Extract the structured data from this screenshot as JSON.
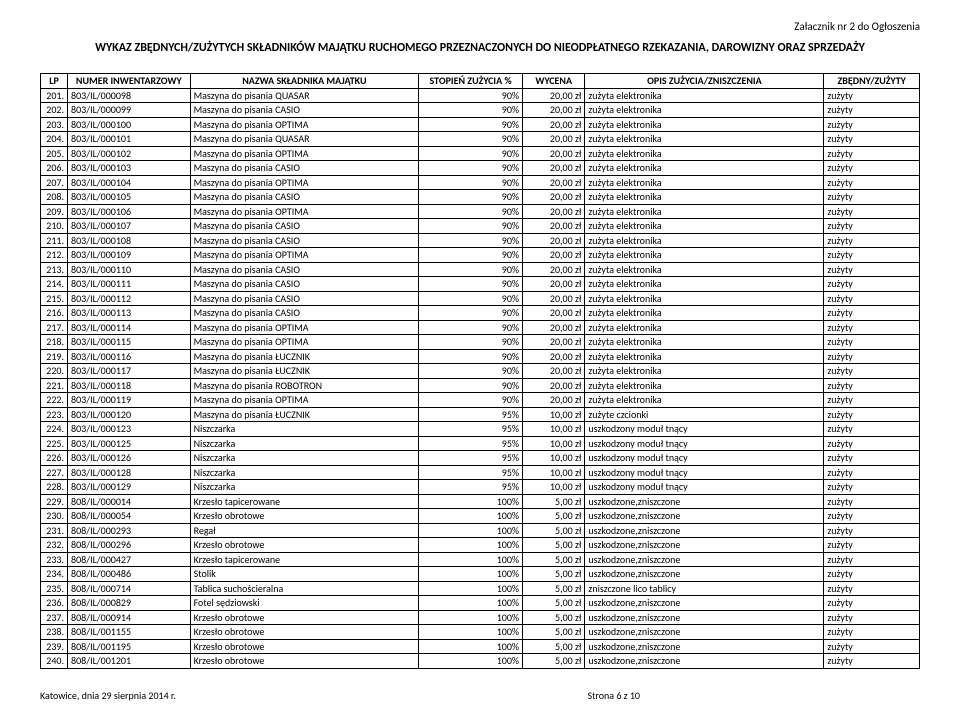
{
  "attachment_label": "Załacznik nr 2 do Ogłoszenia",
  "title": "WYKAZ ZBĘDNYCH/ZUŻYTYCH SKŁADNIKÓW MAJĄTKU RUCHOMEGO PRZEZNACZONYCH DO NIEODPŁATNEGO RZEKAZANIA, DAROWIZNY ORAZ SPRZEDAŻY",
  "columns": {
    "lp": "LP",
    "inv": "NUMER INWENTARZOWY",
    "name": "NAZWA SKŁADNIKA MAJĄTKU",
    "wear": "STOPIEŃ ZUŻYCIA %",
    "val": "WYCENA",
    "desc": "OPIS ZUŻYCIA/ZNISZCZENIA",
    "status": "ZBĘDNY/ZUŻYTY"
  },
  "rows": [
    {
      "lp": "201.",
      "inv": "803/IL/000098",
      "name": "Maszyna do pisania QUASAR",
      "wear": "90%",
      "val": "20,00 zł",
      "desc": "zużyta elektronika",
      "status": "zużyty"
    },
    {
      "lp": "202.",
      "inv": "803/IL/000099",
      "name": "Maszyna do pisania CASIO",
      "wear": "90%",
      "val": "20,00 zł",
      "desc": "zużyta elektronika",
      "status": "zużyty"
    },
    {
      "lp": "203.",
      "inv": "803/IL/000100",
      "name": "Maszyna do pisania OPTIMA",
      "wear": "90%",
      "val": "20,00 zł",
      "desc": "zużyta elektronika",
      "status": "zużyty"
    },
    {
      "lp": "204.",
      "inv": "803/IL/000101",
      "name": "Maszyna do pisania QUASAR",
      "wear": "90%",
      "val": "20,00 zł",
      "desc": "zużyta elektronika",
      "status": "zużyty"
    },
    {
      "lp": "205.",
      "inv": "803/IL/000102",
      "name": "Maszyna do pisania OPTIMA",
      "wear": "90%",
      "val": "20,00 zł",
      "desc": "zużyta elektronika",
      "status": "zużyty"
    },
    {
      "lp": "206.",
      "inv": "803/IL/000103",
      "name": "Maszyna do pisania CASIO",
      "wear": "90%",
      "val": "20,00 zł",
      "desc": "zużyta elektronika",
      "status": "zużyty"
    },
    {
      "lp": "207.",
      "inv": "803/IL/000104",
      "name": "Maszyna do pisania OPTIMA",
      "wear": "90%",
      "val": "20,00 zł",
      "desc": "zużyta elektronika",
      "status": "zużyty"
    },
    {
      "lp": "208.",
      "inv": "803/IL/000105",
      "name": "Maszyna do pisania CASIO",
      "wear": "90%",
      "val": "20,00 zł",
      "desc": "zużyta elektronika",
      "status": "zużyty"
    },
    {
      "lp": "209.",
      "inv": "803/IL/000106",
      "name": "Maszyna do pisania OPTIMA",
      "wear": "90%",
      "val": "20,00 zł",
      "desc": "zużyta elektronika",
      "status": "zużyty"
    },
    {
      "lp": "210.",
      "inv": "803/IL/000107",
      "name": "Maszyna do pisania CASIO",
      "wear": "90%",
      "val": "20,00 zł",
      "desc": "zużyta elektronika",
      "status": "zużyty"
    },
    {
      "lp": "211.",
      "inv": "803/IL/000108",
      "name": "Maszyna do pisania CASIO",
      "wear": "90%",
      "val": "20,00 zł",
      "desc": "zużyta elektronika",
      "status": "zużyty"
    },
    {
      "lp": "212.",
      "inv": "803/IL/000109",
      "name": "Maszyna do pisania OPTIMA",
      "wear": "90%",
      "val": "20,00 zł",
      "desc": "zużyta elektronika",
      "status": "zużyty"
    },
    {
      "lp": "213.",
      "inv": "803/IL/000110",
      "name": "Maszyna do pisania CASIO",
      "wear": "90%",
      "val": "20,00 zł",
      "desc": "zużyta elektronika",
      "status": "zużyty"
    },
    {
      "lp": "214.",
      "inv": "803/IL/000111",
      "name": "Maszyna do pisania CASIO",
      "wear": "90%",
      "val": "20,00 zł",
      "desc": "zużyta elektronika",
      "status": "zużyty"
    },
    {
      "lp": "215.",
      "inv": "803/IL/000112",
      "name": "Maszyna do pisania CASIO",
      "wear": "90%",
      "val": "20,00 zł",
      "desc": "zużyta elektronika",
      "status": "zużyty"
    },
    {
      "lp": "216.",
      "inv": "803/IL/000113",
      "name": "Maszyna do pisania CASIO",
      "wear": "90%",
      "val": "20,00 zł",
      "desc": "zużyta elektronika",
      "status": "zużyty"
    },
    {
      "lp": "217.",
      "inv": "803/IL/000114",
      "name": "Maszyna do pisania OPTIMA",
      "wear": "90%",
      "val": "20,00 zł",
      "desc": "zużyta elektronika",
      "status": "zużyty"
    },
    {
      "lp": "218.",
      "inv": "803/IL/000115",
      "name": "Maszyna do pisania OPTIMA",
      "wear": "90%",
      "val": "20,00 zł",
      "desc": "zużyta elektronika",
      "status": "zużyty"
    },
    {
      "lp": "219.",
      "inv": "803/IL/000116",
      "name": "Maszyna do pisania ŁUCZNIK",
      "wear": "90%",
      "val": "20,00 zł",
      "desc": "zużyta elektronika",
      "status": "zużyty"
    },
    {
      "lp": "220.",
      "inv": "803/IL/000117",
      "name": "Maszyna do pisania ŁUCZNIK",
      "wear": "90%",
      "val": "20,00 zł",
      "desc": "zużyta elektronika",
      "status": "zużyty"
    },
    {
      "lp": "221.",
      "inv": "803/IL/000118",
      "name": "Maszyna do pisania ROBOTRON",
      "wear": "90%",
      "val": "20,00 zł",
      "desc": "zużyta elektronika",
      "status": "zużyty"
    },
    {
      "lp": "222.",
      "inv": "803/IL/000119",
      "name": "Maszyna do pisania OPTIMA",
      "wear": "90%",
      "val": "20,00 zł",
      "desc": "zużyta elektronika",
      "status": "zużyty"
    },
    {
      "lp": "223.",
      "inv": "803/IL/000120",
      "name": "Maszyna do pisania ŁUCZNIK",
      "wear": "95%",
      "val": "10,00 zł",
      "desc": "zużyte czcionki",
      "status": "zużyty"
    },
    {
      "lp": "224.",
      "inv": "803/IL/000123",
      "name": "Niszczarka",
      "wear": "95%",
      "val": "10,00 zł",
      "desc": "uszkodzony moduł tnący",
      "status": "zużyty"
    },
    {
      "lp": "225.",
      "inv": "803/IL/000125",
      "name": "Niszczarka",
      "wear": "95%",
      "val": "10,00 zł",
      "desc": "uszkodzony moduł tnący",
      "status": "zużyty"
    },
    {
      "lp": "226.",
      "inv": "803/IL/000126",
      "name": "Niszczarka",
      "wear": "95%",
      "val": "10,00 zł",
      "desc": "uszkodzony moduł tnący",
      "status": "zużyty"
    },
    {
      "lp": "227.",
      "inv": "803/IL/000128",
      "name": "Niszczarka",
      "wear": "95%",
      "val": "10,00 zł",
      "desc": "uszkodzony moduł tnący",
      "status": "zużyty"
    },
    {
      "lp": "228.",
      "inv": "803/IL/000129",
      "name": "Niszczarka",
      "wear": "95%",
      "val": "10,00 zł",
      "desc": "uszkodzony moduł tnący",
      "status": "zużyty"
    },
    {
      "lp": "229.",
      "inv": "808/IL/000014",
      "name": "Krzesło tapicerowane",
      "wear": "100%",
      "val": "5,00 zł",
      "desc": "uszkodzone,zniszczone",
      "status": "zużyty"
    },
    {
      "lp": "230.",
      "inv": "808/IL/000054",
      "name": "Krzesło obrotowe",
      "wear": "100%",
      "val": "5,00 zł",
      "desc": "uszkodzone,zniszczone",
      "status": "zużyty"
    },
    {
      "lp": "231.",
      "inv": "808/IL/000293",
      "name": "Regał",
      "wear": "100%",
      "val": "5,00 zł",
      "desc": "uszkodzone,zniszczone",
      "status": "zużyty"
    },
    {
      "lp": "232.",
      "inv": "808/IL/000296",
      "name": "Krzesło obrotowe",
      "wear": "100%",
      "val": "5,00 zł",
      "desc": "uszkodzone,zniszczone",
      "status": "zużyty"
    },
    {
      "lp": "233.",
      "inv": "808/IL/000427",
      "name": "Krzesło tapicerowane",
      "wear": "100%",
      "val": "5,00 zł",
      "desc": "uszkodzone,zniszczone",
      "status": "zużyty"
    },
    {
      "lp": "234.",
      "inv": "808/IL/000486",
      "name": "Stolik",
      "wear": "100%",
      "val": "5,00 zł",
      "desc": "uszkodzone,zniszczone",
      "status": "zużyty"
    },
    {
      "lp": "235.",
      "inv": "808/IL/000714",
      "name": "Tablica suchościeralna",
      "wear": "100%",
      "val": "5,00 zł",
      "desc": "zniszczone lico tablicy",
      "status": "zużyty"
    },
    {
      "lp": "236.",
      "inv": "808/IL/000829",
      "name": "Fotel sędziowski",
      "wear": "100%",
      "val": "5,00 zł",
      "desc": "uszkodzone,zniszczone",
      "status": "zużyty"
    },
    {
      "lp": "237.",
      "inv": "808/IL/000914",
      "name": "Krzesło obrotowe",
      "wear": "100%",
      "val": "5,00 zł",
      "desc": "uszkodzone,zniszczone",
      "status": "zużyty"
    },
    {
      "lp": "238.",
      "inv": "808/IL/001155",
      "name": "Krzesło obrotowe",
      "wear": "100%",
      "val": "5,00 zł",
      "desc": "uszkodzone,zniszczone",
      "status": "zużyty"
    },
    {
      "lp": "239.",
      "inv": "808/IL/001195",
      "name": "Krzesło obrotowe",
      "wear": "100%",
      "val": "5,00 zł",
      "desc": "uszkodzone,zniszczone",
      "status": "zużyty"
    },
    {
      "lp": "240.",
      "inv": "808/IL/001201",
      "name": "Krzesło obrotowe",
      "wear": "100%",
      "val": "5,00 zł",
      "desc": "uszkodzone,zniszczone",
      "status": "zużyty"
    }
  ],
  "footer_left": "Katowice, dnia 29 sierpnia 2014 r.",
  "footer_center": "Strona 6 z 10"
}
